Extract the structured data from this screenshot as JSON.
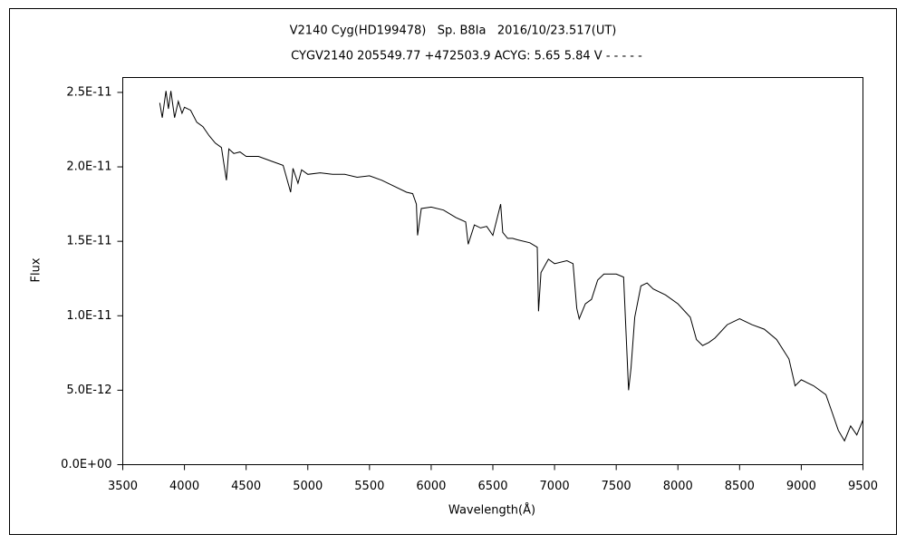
{
  "chart_data": {
    "type": "line",
    "title": "V2140 Cyg(HD199478)   Sp. B8Ia   2016/10/23.517(UT)",
    "subtitle": "CYGV2140 205549.77 +472503.9 ACYG: 5.65 5.84 V - - - - -",
    "x_label": "Wavelength(Å)",
    "y_label": "Flux",
    "xlim": [
      3500,
      9500
    ],
    "xticks": [
      3500,
      4000,
      4500,
      5000,
      5500,
      6000,
      6500,
      7000,
      7500,
      8000,
      8500,
      9000,
      9500
    ],
    "ylim": [
      0,
      2.6e-11
    ],
    "yticks": [
      {
        "value": 0,
        "label": "0.0E+00"
      },
      {
        "value": 5e-12,
        "label": "5.0E-12"
      },
      {
        "value": 1e-11,
        "label": "1.0E-11"
      },
      {
        "value": 1.5e-11,
        "label": "1.5E-11"
      },
      {
        "value": 2e-11,
        "label": "2.0E-11"
      },
      {
        "value": 2.5e-11,
        "label": "2.5E-11"
      }
    ],
    "color": "#000000",
    "x": [
      3800,
      3820,
      3850,
      3870,
      3890,
      3920,
      3950,
      3980,
      4000,
      4050,
      4100,
      4150,
      4200,
      4250,
      4300,
      4340,
      4360,
      4400,
      4450,
      4500,
      4600,
      4700,
      4800,
      4861,
      4880,
      4920,
      4950,
      5000,
      5100,
      5200,
      5300,
      5400,
      5500,
      5600,
      5700,
      5800,
      5850,
      5880,
      5890,
      5920,
      6000,
      6100,
      6200,
      6280,
      6300,
      6350,
      6400,
      6450,
      6500,
      6563,
      6580,
      6620,
      6660,
      6700,
      6800,
      6860,
      6870,
      6890,
      6950,
      7000,
      7100,
      7150,
      7180,
      7200,
      7250,
      7300,
      7350,
      7400,
      7500,
      7560,
      7600,
      7620,
      7650,
      7700,
      7750,
      7800,
      7900,
      8000,
      8100,
      8150,
      8200,
      8250,
      8300,
      8400,
      8500,
      8600,
      8700,
      8800,
      8900,
      8950,
      9000,
      9100,
      9200,
      9250,
      9300,
      9350,
      9400,
      9450,
      9500
    ],
    "values": [
      2.43e-11,
      2.33e-11,
      2.51e-11,
      2.39e-11,
      2.51e-11,
      2.33e-11,
      2.44e-11,
      2.36e-11,
      2.4e-11,
      2.38e-11,
      2.3e-11,
      2.27e-11,
      2.21e-11,
      2.16e-11,
      2.13e-11,
      1.91e-11,
      2.12e-11,
      2.09e-11,
      2.1e-11,
      2.07e-11,
      2.07e-11,
      2.04e-11,
      2.01e-11,
      1.83e-11,
      1.99e-11,
      1.89e-11,
      1.98e-11,
      1.95e-11,
      1.96e-11,
      1.95e-11,
      1.95e-11,
      1.93e-11,
      1.94e-11,
      1.91e-11,
      1.87e-11,
      1.83e-11,
      1.82e-11,
      1.75e-11,
      1.54e-11,
      1.72e-11,
      1.73e-11,
      1.71e-11,
      1.66e-11,
      1.63e-11,
      1.48e-11,
      1.61e-11,
      1.59e-11,
      1.6e-11,
      1.54e-11,
      1.75e-11,
      1.56e-11,
      1.52e-11,
      1.52e-11,
      1.51e-11,
      1.49e-11,
      1.46e-11,
      1.03e-11,
      1.29e-11,
      1.38e-11,
      1.35e-11,
      1.37e-11,
      1.35e-11,
      1.05e-11,
      9.8e-12,
      1.08e-11,
      1.11e-11,
      1.24e-11,
      1.28e-11,
      1.28e-11,
      1.26e-11,
      5e-12,
      6.5e-12,
      9.9e-12,
      1.2e-11,
      1.22e-11,
      1.18e-11,
      1.14e-11,
      1.08e-11,
      9.9e-12,
      8.4e-12,
      8e-12,
      8.2e-12,
      8.5e-12,
      9.4e-12,
      9.8e-12,
      9.4e-12,
      9.1e-12,
      8.4e-12,
      7.1e-12,
      5.3e-12,
      5.7e-12,
      5.3e-12,
      4.7e-12,
      3.5e-12,
      2.3e-12,
      1.6e-12,
      2.6e-12,
      2e-12,
      3e-12
    ]
  }
}
